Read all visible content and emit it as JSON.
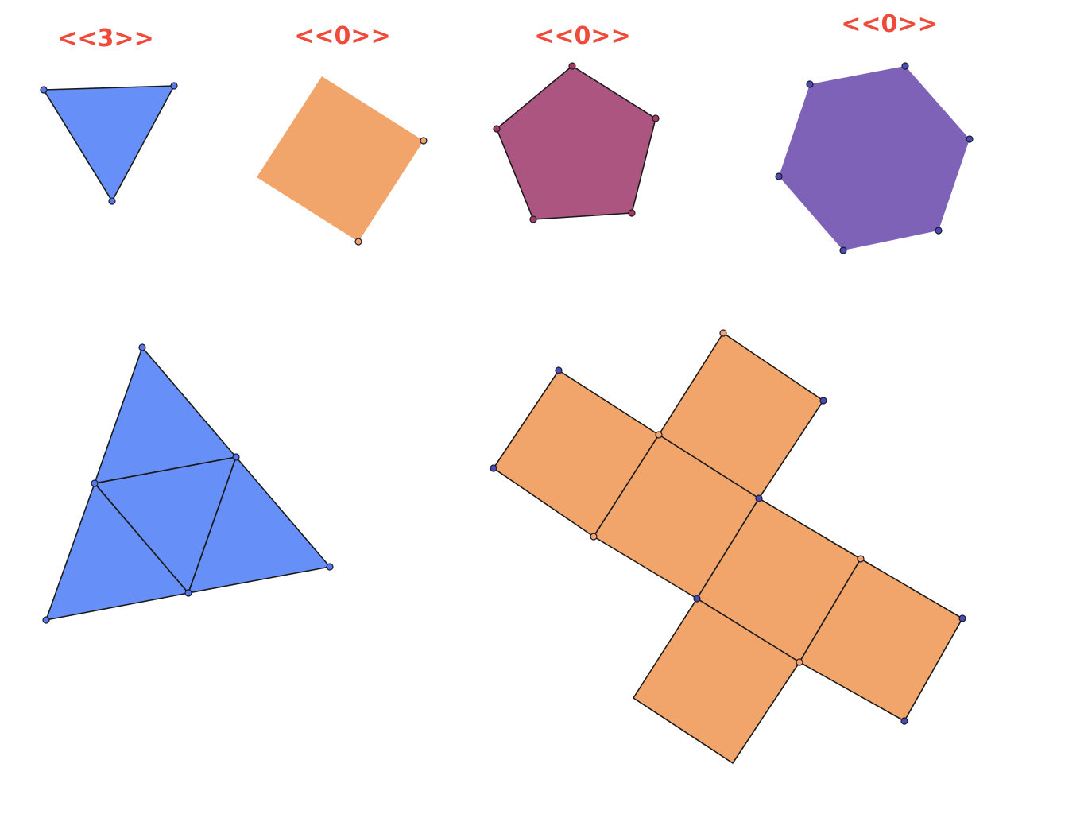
{
  "colors": {
    "counter_text": "#f04a3a",
    "triangle_fill": "#6690f7",
    "square_fill": "#f2a56a",
    "pentagon_fill": "#ab5580",
    "hexagon_fill": "#7e62b7",
    "vertex_blue": "#5877e8",
    "vertex_orange": "#f2a56a",
    "vertex_red": "#a83a5a",
    "vertex_indigo": "#4a4ab0"
  },
  "counters": {
    "triangle": "<<3>>",
    "square": "<<0>>",
    "pentagon": "<<0>>",
    "hexagon": "<<0>>"
  },
  "shapes": {
    "triangle": {
      "sides": 3
    },
    "square": {
      "sides": 4
    },
    "pentagon": {
      "sides": 5
    },
    "hexagon": {
      "sides": 6
    },
    "triangle_net": {
      "faces": 4
    },
    "cube_net": {
      "faces": 6
    }
  }
}
